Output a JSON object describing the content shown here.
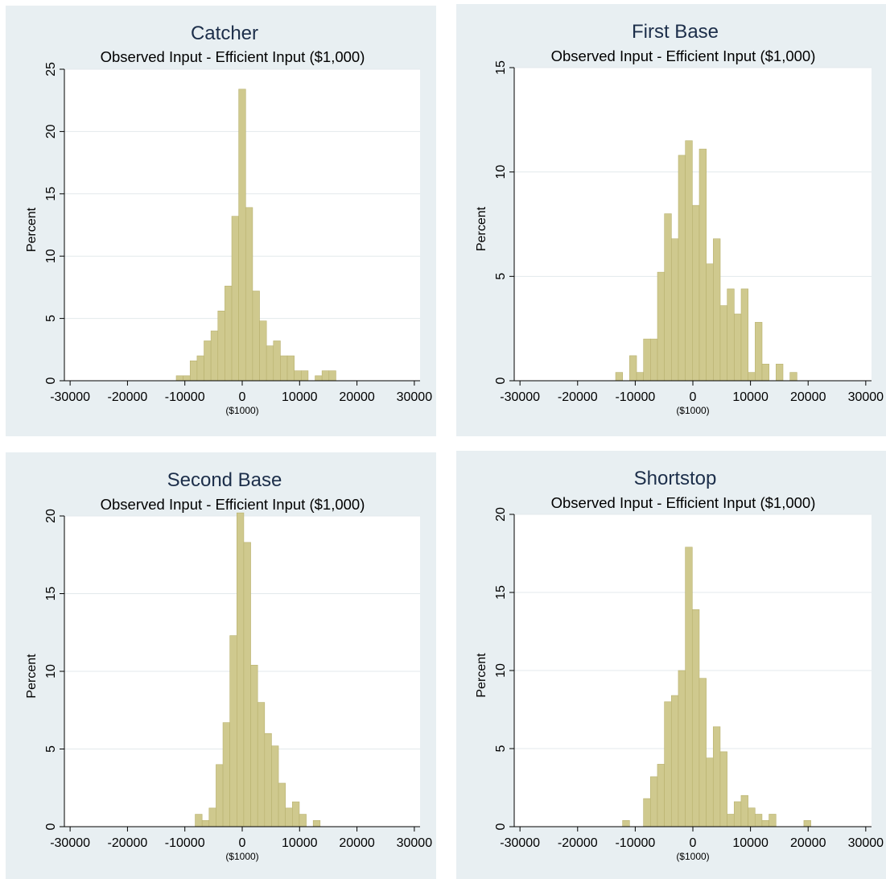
{
  "colors": {
    "panel_bg": "#e8eff2",
    "plot_bg": "#ffffff",
    "bar_fill": "#cfc98e",
    "bar_stroke": "#b8b16e",
    "title": "#1c2e4a",
    "grid": "#e3e9ec"
  },
  "chart_data": [
    {
      "type": "bar",
      "title": "Catcher",
      "subtitle": "Observed Input - Efficient Input ($1,000)",
      "xlabel": "($1000)",
      "ylabel": "Percent",
      "xlim": [
        -31000,
        31000
      ],
      "ylim": [
        0,
        25
      ],
      "xticks": [
        -30000,
        -20000,
        -10000,
        0,
        10000,
        20000,
        30000
      ],
      "yticks": [
        0,
        5,
        10,
        15,
        20,
        25
      ],
      "grid": true,
      "bin_width": 1210,
      "x": [
        -11500,
        -10290,
        -9080,
        -7870,
        -6660,
        -5450,
        -4240,
        -3030,
        -1820,
        -610,
        600,
        1810,
        3020,
        4230,
        5440,
        6650,
        7860,
        9070,
        10280,
        11490,
        12700,
        13910,
        15120
      ],
      "values": [
        0.4,
        0.4,
        1.6,
        2.0,
        3.2,
        4.0,
        5.6,
        7.6,
        13.2,
        23.4,
        13.9,
        7.2,
        4.8,
        2.8,
        3.2,
        2.0,
        2.0,
        0.8,
        0.8,
        0,
        0.4,
        0.8,
        0.8
      ]
    },
    {
      "type": "bar",
      "title": "First Base",
      "subtitle": "Observed Input - Efficient Input ($1,000)",
      "xlabel": "($1000)",
      "ylabel": "Percent",
      "xlim": [
        -31000,
        31000
      ],
      "ylim": [
        0,
        15
      ],
      "xticks": [
        -30000,
        -20000,
        -10000,
        0,
        10000,
        20000,
        30000
      ],
      "yticks": [
        0,
        5,
        10,
        15
      ],
      "grid": true,
      "bin_width": 1210,
      "x": [
        -13400,
        -12190,
        -10980,
        -9770,
        -8560,
        -7350,
        -6140,
        -4930,
        -3720,
        -2510,
        -1300,
        -90,
        1120,
        2330,
        3540,
        4750,
        5960,
        7170,
        8380,
        9590,
        10800,
        12010,
        13220,
        14430,
        15640,
        16850,
        18060
      ],
      "values": [
        0.4,
        0,
        1.2,
        0.4,
        2.0,
        2.0,
        5.2,
        8.0,
        6.8,
        10.8,
        11.5,
        8.4,
        11.1,
        5.6,
        6.8,
        3.6,
        4.4,
        3.2,
        4.4,
        0.4,
        2.8,
        0.8,
        0,
        0.8,
        0,
        0.4,
        0
      ]
    },
    {
      "type": "bar",
      "title": "Second Base",
      "subtitle": "Observed Input - Efficient Input ($1,000)",
      "xlabel": "($1000)",
      "ylabel": "Percent",
      "xlim": [
        -31000,
        31000
      ],
      "ylim": [
        0,
        20
      ],
      "xticks": [
        -30000,
        -20000,
        -10000,
        0,
        10000,
        20000,
        30000
      ],
      "yticks": [
        0,
        5,
        10,
        15,
        20
      ],
      "grid": true,
      "bin_width": 1210,
      "x": [
        -8200,
        -6990,
        -5780,
        -4570,
        -3360,
        -2150,
        -940,
        270,
        1480,
        2690,
        3900,
        5110,
        6320,
        7530,
        8740,
        9950,
        11160,
        12370
      ],
      "values": [
        0.8,
        0.4,
        1.2,
        4.0,
        6.7,
        12.3,
        20.2,
        18.3,
        10.4,
        8.0,
        6.0,
        5.2,
        2.8,
        1.2,
        1.6,
        0.8,
        0,
        0.4
      ]
    },
    {
      "type": "bar",
      "title": "Shortstop",
      "subtitle": "Observed Input - Efficient Input ($1,000)",
      "xlabel": "($1000)",
      "ylabel": "Percent",
      "xlim": [
        -31000,
        31000
      ],
      "ylim": [
        0,
        20
      ],
      "xticks": [
        -30000,
        -20000,
        -10000,
        0,
        10000,
        20000,
        30000
      ],
      "yticks": [
        0,
        5,
        10,
        15,
        20
      ],
      "grid": true,
      "bin_width": 1210,
      "x": [
        -12200,
        -10990,
        -9780,
        -8570,
        -7360,
        -6150,
        -4940,
        -3730,
        -2520,
        -1310,
        -100,
        1110,
        2320,
        3530,
        4740,
        5950,
        7160,
        8370,
        9580,
        10790,
        12000,
        13210,
        14420,
        15630,
        16840,
        18050,
        19260
      ],
      "values": [
        0.4,
        0,
        0,
        1.8,
        3.2,
        4.0,
        8.0,
        8.4,
        10.0,
        17.9,
        13.9,
        9.5,
        4.4,
        6.4,
        4.8,
        0.8,
        1.6,
        2.0,
        1.2,
        0.8,
        0.4,
        0.8,
        0,
        0,
        0,
        0,
        0.4
      ]
    }
  ]
}
